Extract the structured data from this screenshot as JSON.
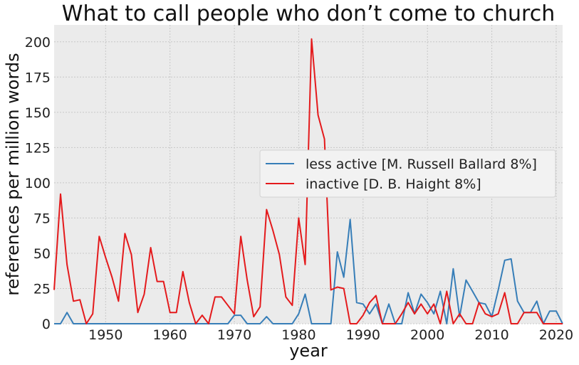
{
  "chart_data": {
    "type": "line",
    "title": "What to call people who don’t come to church",
    "xlabel": "year",
    "ylabel": "references per million words",
    "xlim": [
      1942,
      2021
    ],
    "ylim": [
      0,
      212
    ],
    "xticks": [
      1950,
      1960,
      1970,
      1980,
      1990,
      2000,
      2010,
      2020
    ],
    "yticks": [
      0,
      25,
      50,
      75,
      100,
      125,
      150,
      175,
      200
    ],
    "grid": true,
    "legend_position": "center-right",
    "colors": {
      "plot_background": "#ebebeb",
      "grid": "#c8c8c8"
    },
    "series": [
      {
        "name": "less active [M. Russell Ballard 8%]",
        "color": "#377eb8",
        "x": [
          1942,
          1943,
          1944,
          1945,
          1946,
          1947,
          1948,
          1949,
          1950,
          1951,
          1952,
          1953,
          1954,
          1955,
          1956,
          1957,
          1958,
          1959,
          1960,
          1961,
          1962,
          1963,
          1964,
          1965,
          1966,
          1967,
          1968,
          1969,
          1970,
          1971,
          1972,
          1973,
          1974,
          1975,
          1976,
          1977,
          1978,
          1979,
          1980,
          1981,
          1982,
          1983,
          1984,
          1985,
          1986,
          1987,
          1988,
          1989,
          1990,
          1991,
          1992,
          1993,
          1994,
          1995,
          1996,
          1997,
          1998,
          1999,
          2000,
          2001,
          2002,
          2003,
          2004,
          2005,
          2006,
          2007,
          2008,
          2009,
          2010,
          2011,
          2012,
          2013,
          2014,
          2015,
          2016,
          2017,
          2018,
          2019,
          2020,
          2021
        ],
        "y": [
          0,
          0,
          8,
          0,
          0,
          0,
          0,
          0,
          0,
          0,
          0,
          0,
          0,
          0,
          0,
          0,
          0,
          0,
          0,
          0,
          0,
          0,
          0,
          0,
          0,
          0,
          0,
          0,
          6,
          6,
          0,
          0,
          0,
          5,
          0,
          0,
          0,
          0,
          7,
          21,
          0,
          0,
          0,
          0,
          51,
          33,
          74,
          15,
          14,
          7,
          14,
          0,
          14,
          0,
          0,
          22,
          7,
          21,
          15,
          7,
          23,
          0,
          39,
          5,
          31,
          23,
          15,
          14,
          5,
          24,
          45,
          46,
          16,
          8,
          8,
          16,
          0,
          9,
          9,
          0
        ]
      },
      {
        "name": "inactive [D. B. Haight 8%]",
        "color": "#e41a1c",
        "x": [
          1942,
          1943,
          1944,
          1945,
          1946,
          1947,
          1948,
          1949,
          1950,
          1951,
          1952,
          1953,
          1954,
          1955,
          1956,
          1957,
          1958,
          1959,
          1960,
          1961,
          1962,
          1963,
          1964,
          1965,
          1966,
          1967,
          1968,
          1969,
          1970,
          1971,
          1972,
          1973,
          1974,
          1975,
          1976,
          1977,
          1978,
          1979,
          1980,
          1981,
          1982,
          1983,
          1984,
          1985,
          1986,
          1987,
          1988,
          1989,
          1990,
          1991,
          1992,
          1993,
          1994,
          1995,
          1996,
          1997,
          1998,
          1999,
          2000,
          2001,
          2002,
          2003,
          2004,
          2005,
          2006,
          2007,
          2008,
          2009,
          2010,
          2011,
          2012,
          2013,
          2014,
          2015,
          2016,
          2017,
          2018,
          2019,
          2020,
          2021
        ],
        "y": [
          24,
          92,
          42,
          16,
          17,
          0,
          7,
          62,
          47,
          33,
          16,
          64,
          49,
          8,
          21,
          54,
          30,
          30,
          8,
          8,
          37,
          15,
          0,
          6,
          0,
          19,
          19,
          13,
          7,
          62,
          31,
          5,
          12,
          81,
          66,
          49,
          19,
          13,
          75,
          42,
          202,
          148,
          131,
          24,
          26,
          25,
          0,
          0,
          6,
          15,
          20,
          0,
          0,
          0,
          7,
          15,
          7,
          14,
          7,
          14,
          0,
          23,
          0,
          7,
          0,
          0,
          15,
          7,
          5,
          7,
          22,
          0,
          0,
          8,
          8,
          8,
          0,
          0,
          0,
          0
        ]
      }
    ]
  }
}
